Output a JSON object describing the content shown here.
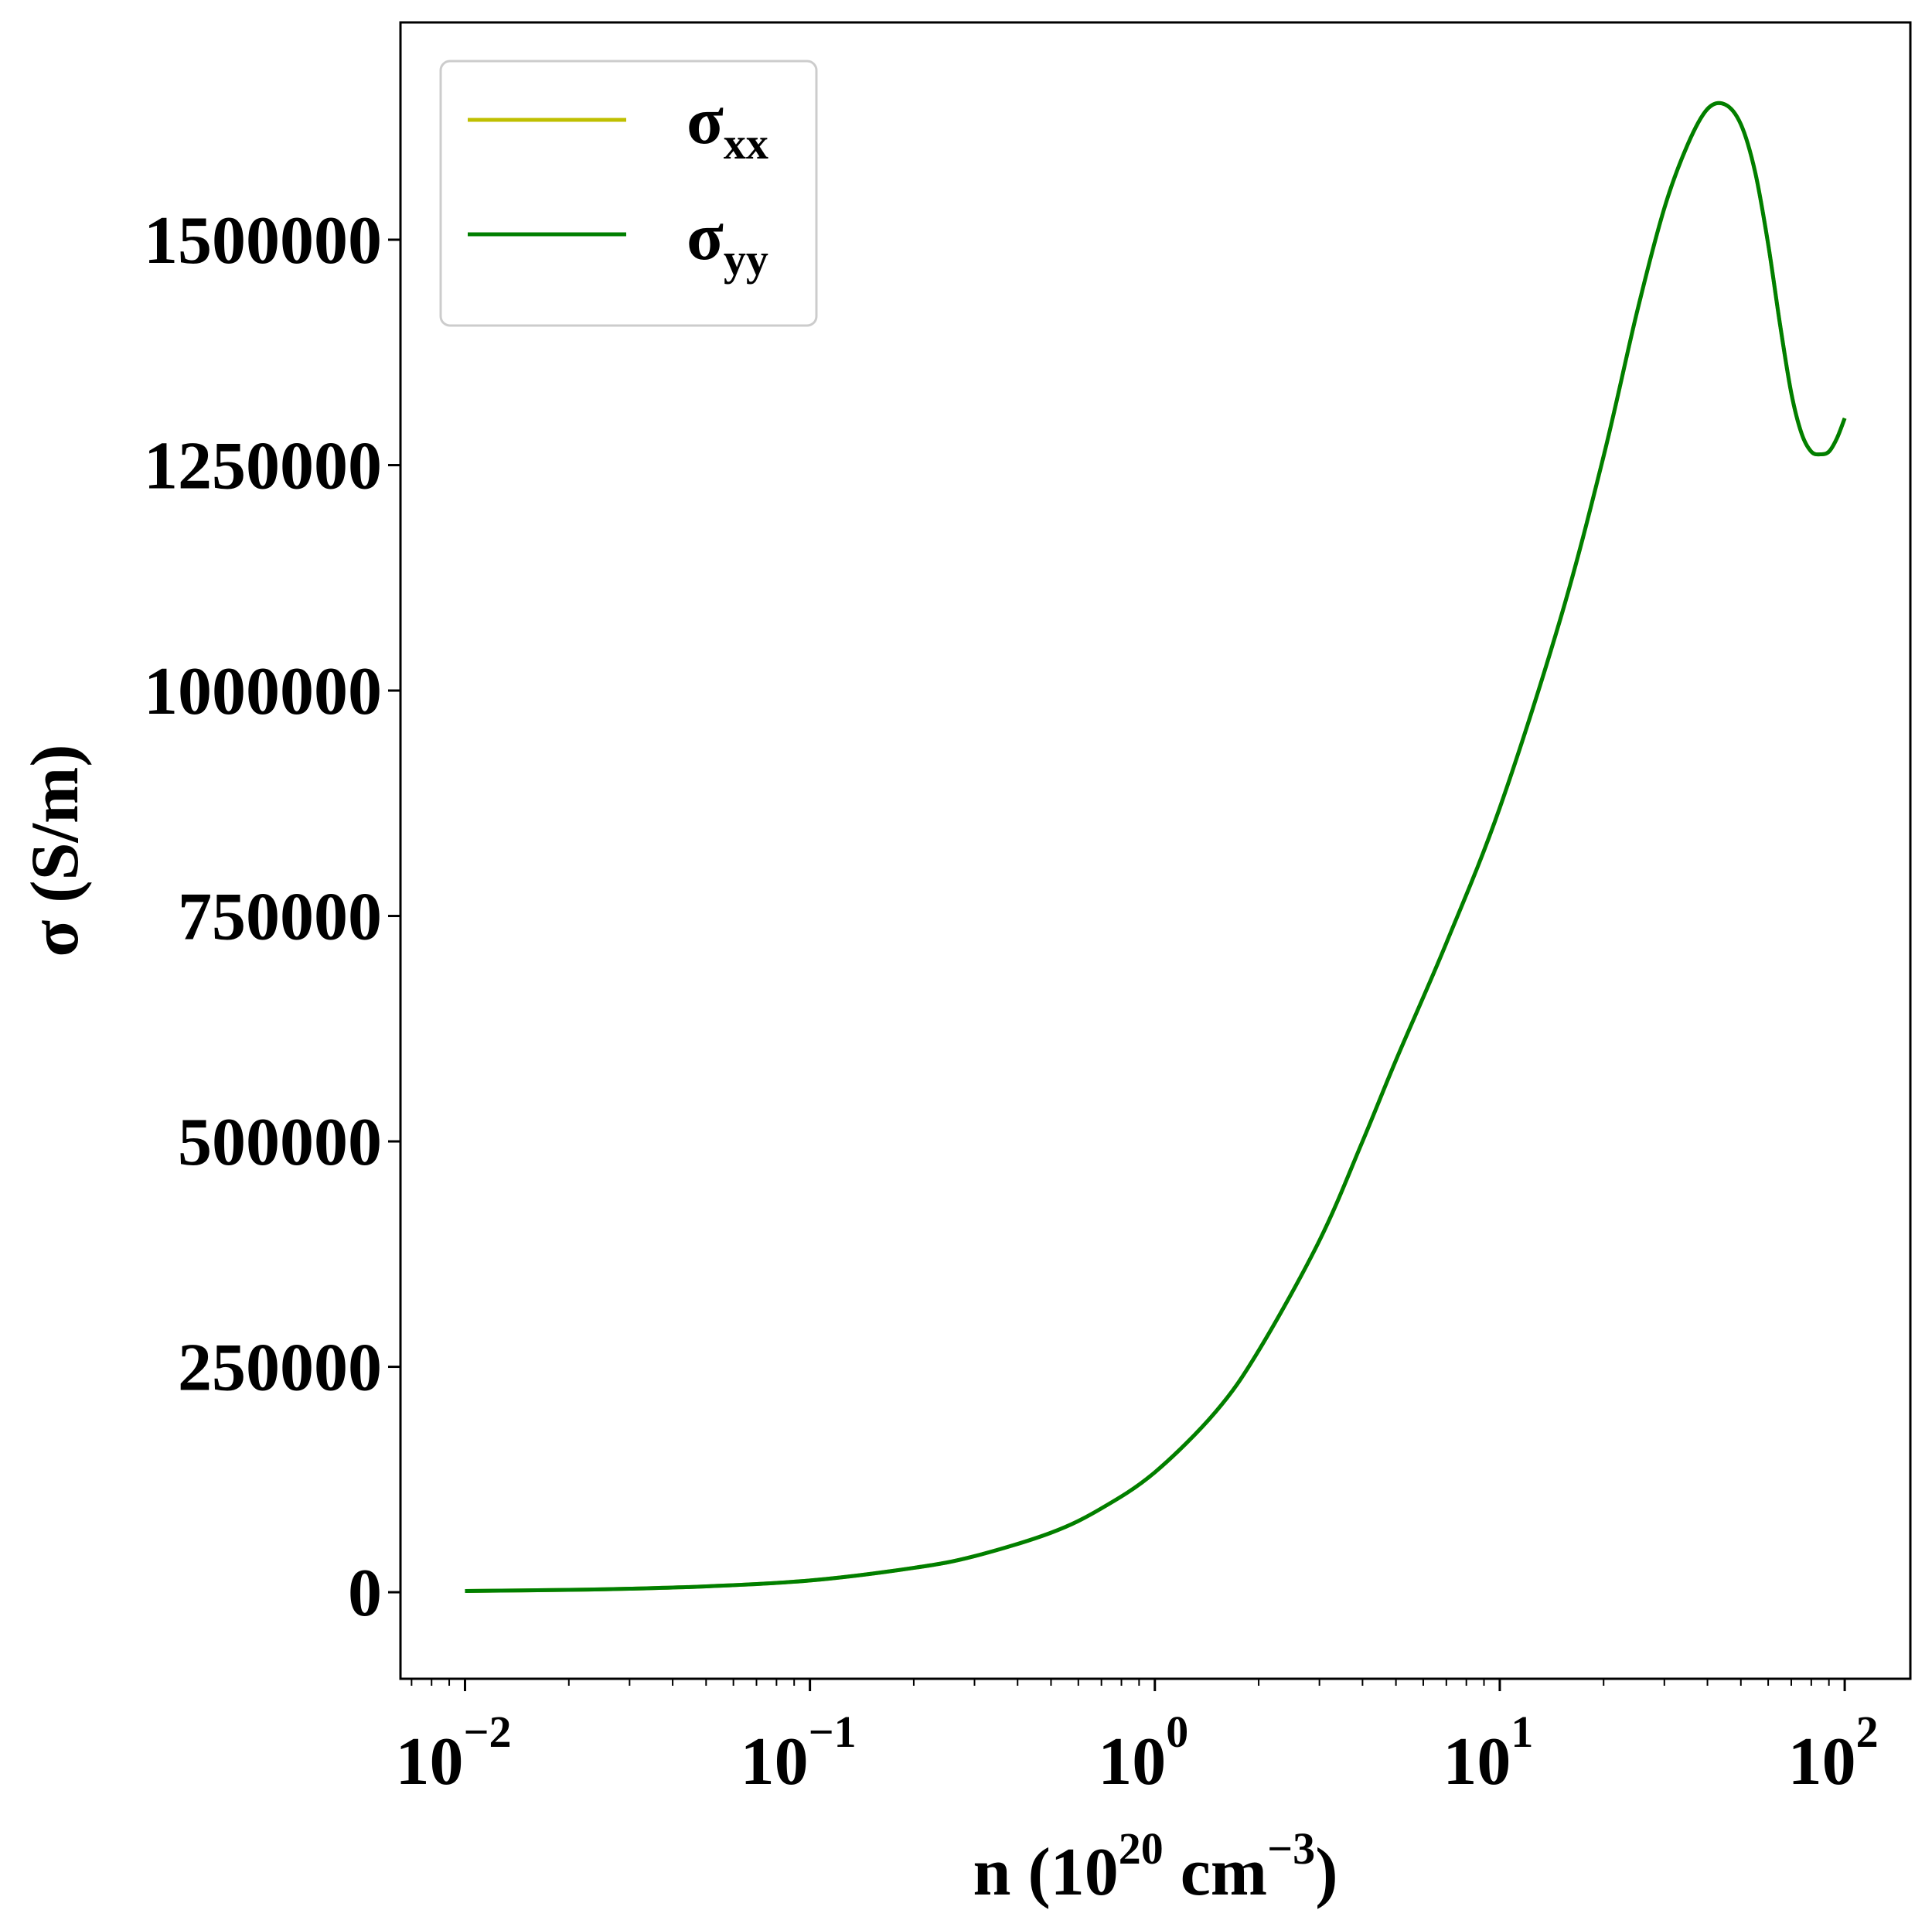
{
  "chart_data": {
    "type": "line",
    "xscale": "log",
    "xlim": [
      0.0065,
      155
    ],
    "ylim": [
      -96000,
      1741000
    ],
    "xlabel": {
      "base": "n (10",
      "exp1": "20",
      "mid": " cm",
      "exp2": "−3",
      "end": ")"
    },
    "ylabel": "σ (S/m)",
    "xticks": [
      {
        "value": 0.01,
        "base": "10",
        "exp": "−2"
      },
      {
        "value": 0.1,
        "base": "10",
        "exp": "−1"
      },
      {
        "value": 1,
        "base": "10",
        "exp": "0"
      },
      {
        "value": 10,
        "base": "10",
        "exp": "1"
      },
      {
        "value": 100,
        "base": "10",
        "exp": "2"
      }
    ],
    "yticks": [
      {
        "value": 0,
        "label": "0"
      },
      {
        "value": 250000,
        "label": "250000"
      },
      {
        "value": 500000,
        "label": "500000"
      },
      {
        "value": 750000,
        "label": "750000"
      },
      {
        "value": 1000000,
        "label": "1000000"
      },
      {
        "value": 1250000,
        "label": "1250000"
      },
      {
        "value": 1500000,
        "label": "1500000"
      }
    ],
    "legend_position": "top-left",
    "series": [
      {
        "name": {
          "base": "σ",
          "sub": "xx"
        },
        "color": "#bfbf00",
        "x": [
          0.01,
          0.02,
          0.03,
          0.05,
          0.1,
          0.2,
          0.3,
          0.5,
          0.7,
          1,
          1.5,
          2,
          3,
          4,
          5,
          7,
          10,
          15,
          20,
          25,
          30,
          35,
          40,
          45,
          50,
          55,
          60,
          65,
          70,
          75,
          80,
          85,
          90,
          95,
          100
        ],
        "y": [
          1300,
          2600,
          3900,
          6500,
          13000,
          27000,
          40000,
          66000,
          93000,
          133000,
          200000,
          268000,
          390000,
          500000,
          590000,
          720000,
          870000,
          1080000,
          1260000,
          1420000,
          1535000,
          1605000,
          1645000,
          1650000,
          1628000,
          1575000,
          1495000,
          1405000,
          1330000,
          1285000,
          1265000,
          1262000,
          1265000,
          1280000,
          1302000
        ]
      },
      {
        "name": {
          "base": "σ",
          "sub": "yy"
        },
        "color": "#007f00",
        "x": [
          0.01,
          0.02,
          0.03,
          0.05,
          0.1,
          0.2,
          0.3,
          0.5,
          0.7,
          1,
          1.5,
          2,
          3,
          4,
          5,
          7,
          10,
          15,
          20,
          25,
          30,
          35,
          40,
          45,
          50,
          55,
          60,
          65,
          70,
          75,
          80,
          85,
          90,
          95,
          100
        ],
        "y": [
          1300,
          2600,
          3900,
          6500,
          13000,
          27000,
          40000,
          66000,
          93000,
          133000,
          200000,
          268000,
          390000,
          500000,
          590000,
          720000,
          870000,
          1080000,
          1260000,
          1420000,
          1535000,
          1605000,
          1645000,
          1650000,
          1628000,
          1575000,
          1495000,
          1405000,
          1330000,
          1285000,
          1265000,
          1262000,
          1265000,
          1280000,
          1302000
        ]
      }
    ]
  }
}
